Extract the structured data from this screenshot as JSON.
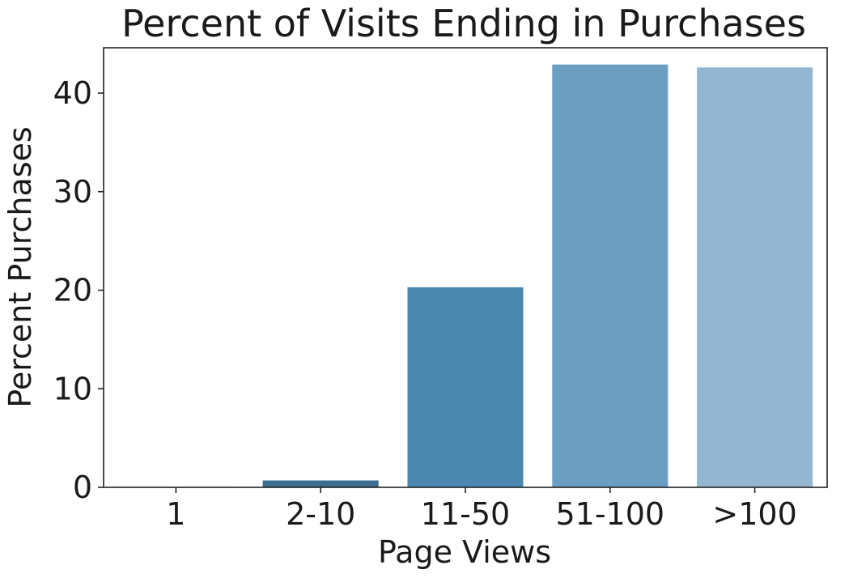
{
  "chart_data": {
    "type": "bar",
    "title": "Percent of Visits Ending in Purchases",
    "xlabel": "Page Views",
    "ylabel": "Percent Purchases",
    "categories": [
      "1",
      "2-10",
      "11-50",
      "51-100",
      ">100"
    ],
    "values": [
      0.05,
      0.7,
      20.3,
      42.9,
      42.6
    ],
    "ylim": [
      0,
      44.6
    ],
    "yticks": [
      0,
      10,
      20,
      30,
      40
    ],
    "grid": false,
    "legend": "none",
    "colors": [
      "#2d5a7b",
      "#3d6e8f",
      "#4c87b0",
      "#6c9ec2",
      "#93b7d2"
    ]
  }
}
